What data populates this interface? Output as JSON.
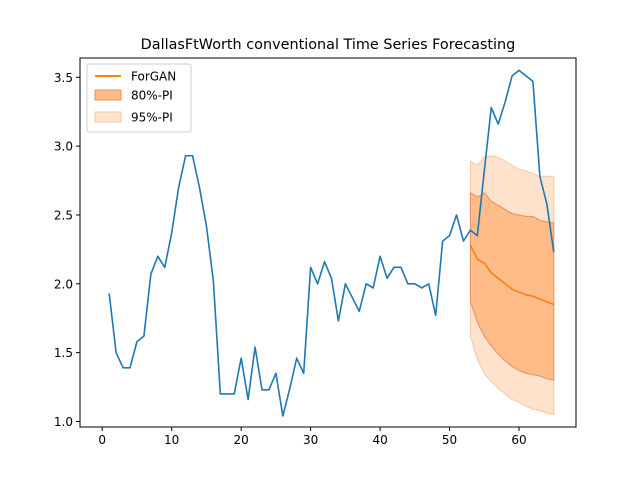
{
  "chart_data": {
    "type": "line",
    "title": "DallasFtWorth conventional Time Series Forecasting",
    "xlabel": "",
    "ylabel": "",
    "xlim": [
      -3.2,
      68.2
    ],
    "ylim": [
      0.96,
      3.64
    ],
    "x_ticks": [
      0,
      10,
      20,
      30,
      40,
      50,
      60
    ],
    "y_ticks": [
      1.0,
      1.5,
      2.0,
      2.5,
      3.0,
      3.5
    ],
    "x_tick_labels": [
      "0",
      "10",
      "20",
      "30",
      "40",
      "50",
      "60"
    ],
    "y_tick_labels": [
      "1.0",
      "1.5",
      "2.0",
      "2.5",
      "3.0",
      "3.5"
    ],
    "grid": false,
    "legend_position": "top-left",
    "legend": [
      {
        "label": "ForGAN",
        "kind": "line",
        "color": "#ff7f0e"
      },
      {
        "label": "80%-PI",
        "kind": "patch",
        "color": "#ffbb88",
        "edge": "#e8905a"
      },
      {
        "label": "95%-PI",
        "kind": "patch",
        "color": "#ffe2cc",
        "edge": "#f8c8a4"
      }
    ],
    "actual": {
      "color": "#1f77b4",
      "x": [
        1,
        2,
        3,
        4,
        5,
        6,
        7,
        8,
        9,
        10,
        11,
        12,
        13,
        14,
        15,
        16,
        17,
        18,
        19,
        20,
        21,
        22,
        23,
        24,
        25,
        26,
        27,
        28,
        29,
        30,
        31,
        32,
        33,
        34,
        35,
        36,
        37,
        38,
        39,
        40,
        41,
        42,
        43,
        44,
        45,
        46,
        47,
        48,
        49,
        50,
        51,
        52,
        53,
        54,
        55,
        56,
        57,
        58,
        59,
        60,
        61,
        62,
        63,
        64,
        65
      ],
      "y": [
        1.93,
        1.5,
        1.39,
        1.39,
        1.58,
        1.62,
        2.07,
        2.2,
        2.12,
        2.37,
        2.7,
        2.93,
        2.93,
        2.7,
        2.42,
        2.02,
        1.2,
        1.2,
        1.2,
        1.46,
        1.16,
        1.54,
        1.23,
        1.23,
        1.35,
        1.04,
        1.24,
        1.46,
        1.35,
        2.12,
        2.0,
        2.16,
        2.04,
        1.73,
        2.0,
        1.9,
        1.8,
        2.0,
        1.97,
        2.2,
        2.04,
        2.12,
        2.12,
        2.0,
        2.0,
        1.97,
        2.0,
        1.77,
        2.31,
        2.35,
        2.5,
        2.31,
        2.39,
        2.35,
        2.82,
        3.28,
        3.16,
        3.32,
        3.51,
        3.55,
        3.51,
        3.47,
        2.78,
        2.58,
        2.23
      ]
    },
    "forecast": {
      "name": "ForGAN",
      "color": "#ff7f0e",
      "x": [
        53,
        54,
        55,
        56,
        57,
        58,
        59,
        60,
        61,
        62,
        63,
        64,
        65
      ],
      "median": [
        2.28,
        2.18,
        2.15,
        2.08,
        2.04,
        2.0,
        1.96,
        1.94,
        1.92,
        1.91,
        1.89,
        1.87,
        1.85
      ],
      "pi80_lower": [
        1.87,
        1.72,
        1.62,
        1.55,
        1.49,
        1.44,
        1.4,
        1.37,
        1.35,
        1.34,
        1.33,
        1.31,
        1.3
      ],
      "pi80_upper": [
        2.66,
        2.63,
        2.66,
        2.6,
        2.57,
        2.54,
        2.51,
        2.5,
        2.49,
        2.49,
        2.46,
        2.45,
        2.44
      ],
      "pi95_lower": [
        1.62,
        1.45,
        1.35,
        1.29,
        1.24,
        1.2,
        1.16,
        1.14,
        1.11,
        1.09,
        1.08,
        1.06,
        1.05
      ],
      "pi95_upper": [
        2.89,
        2.86,
        2.92,
        2.93,
        2.92,
        2.89,
        2.86,
        2.83,
        2.82,
        2.8,
        2.78,
        2.78,
        2.78
      ]
    }
  }
}
